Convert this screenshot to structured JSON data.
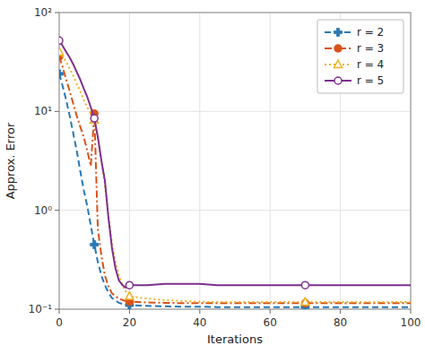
{
  "chart_data": {
    "type": "line",
    "xlabel": "Iterations",
    "ylabel": "Approx. Error",
    "log": "y",
    "grid": true,
    "legend": "upper right",
    "xlim": [
      0,
      100
    ],
    "ylim": [
      0.1,
      100
    ],
    "xticks": [
      0,
      20,
      40,
      60,
      80,
      100
    ],
    "yticks": [
      {
        "value": 0.1,
        "label": "10⁻¹"
      },
      {
        "value": 1,
        "label": "10⁰"
      },
      {
        "value": 10,
        "label": "10¹"
      },
      {
        "value": 100,
        "label": "10²"
      }
    ],
    "x": [
      0,
      1,
      2,
      3,
      4,
      5,
      6,
      7,
      8,
      9,
      10,
      11,
      12,
      13,
      14,
      15,
      16,
      17,
      18,
      19,
      20,
      25,
      30,
      35,
      40,
      45,
      50,
      55,
      60,
      65,
      70,
      75,
      80,
      85,
      90,
      95,
      100
    ],
    "series": [
      {
        "name": "r = 2",
        "color": "#2878b5",
        "line_style": "dashed",
        "marker": "plus",
        "values": [
          24,
          18,
          13,
          9.0,
          6.0,
          4.0,
          2.5,
          1.6,
          1.1,
          0.7,
          0.45,
          0.3,
          0.22,
          0.175,
          0.148,
          0.13,
          0.122,
          0.116,
          0.113,
          0.111,
          0.11,
          0.108,
          0.107,
          0.106,
          0.106,
          0.105,
          0.105,
          0.105,
          0.105,
          0.105,
          0.105,
          0.105,
          0.105,
          0.105,
          0.105,
          0.105,
          0.105
        ]
      },
      {
        "name": "r = 3",
        "color": "#d95319",
        "line_style": "dashdot",
        "marker": "circle",
        "values": [
          36,
          28,
          21,
          16,
          12,
          9.0,
          7.0,
          5.5,
          4.0,
          2.8,
          9.5,
          0.65,
          0.35,
          0.22,
          0.17,
          0.145,
          0.135,
          0.128,
          0.124,
          0.121,
          0.119,
          0.117,
          0.116,
          0.115,
          0.115,
          0.115,
          0.115,
          0.115,
          0.115,
          0.115,
          0.115,
          0.115,
          0.115,
          0.115,
          0.115,
          0.115,
          0.115
        ]
      },
      {
        "name": "r = 4",
        "color": "#edb120",
        "line_style": "dotted",
        "marker": "triangle-open",
        "values": [
          40,
          36,
          32,
          27,
          23,
          19,
          16,
          13,
          11,
          9.5,
          8.2,
          5.5,
          3.2,
          1.8,
          0.9,
          0.48,
          0.3,
          0.22,
          0.175,
          0.15,
          0.135,
          0.128,
          0.124,
          0.121,
          0.119,
          0.118,
          0.118,
          0.118,
          0.118,
          0.118,
          0.118,
          0.118,
          0.118,
          0.118,
          0.118,
          0.118,
          0.118
        ]
      },
      {
        "name": "r = 5",
        "color": "#7e2f8e",
        "line_style": "solid",
        "marker": "circle-open",
        "values": [
          52,
          46,
          40,
          35,
          30,
          25,
          21,
          17,
          14,
          11,
          8.5,
          5.5,
          3.2,
          2.0,
          0.85,
          0.42,
          0.26,
          0.195,
          0.175,
          0.165,
          0.175,
          0.175,
          0.18,
          0.18,
          0.18,
          0.175,
          0.175,
          0.175,
          0.175,
          0.175,
          0.175,
          0.175,
          0.175,
          0.175,
          0.175,
          0.175,
          0.175
        ]
      }
    ]
  }
}
